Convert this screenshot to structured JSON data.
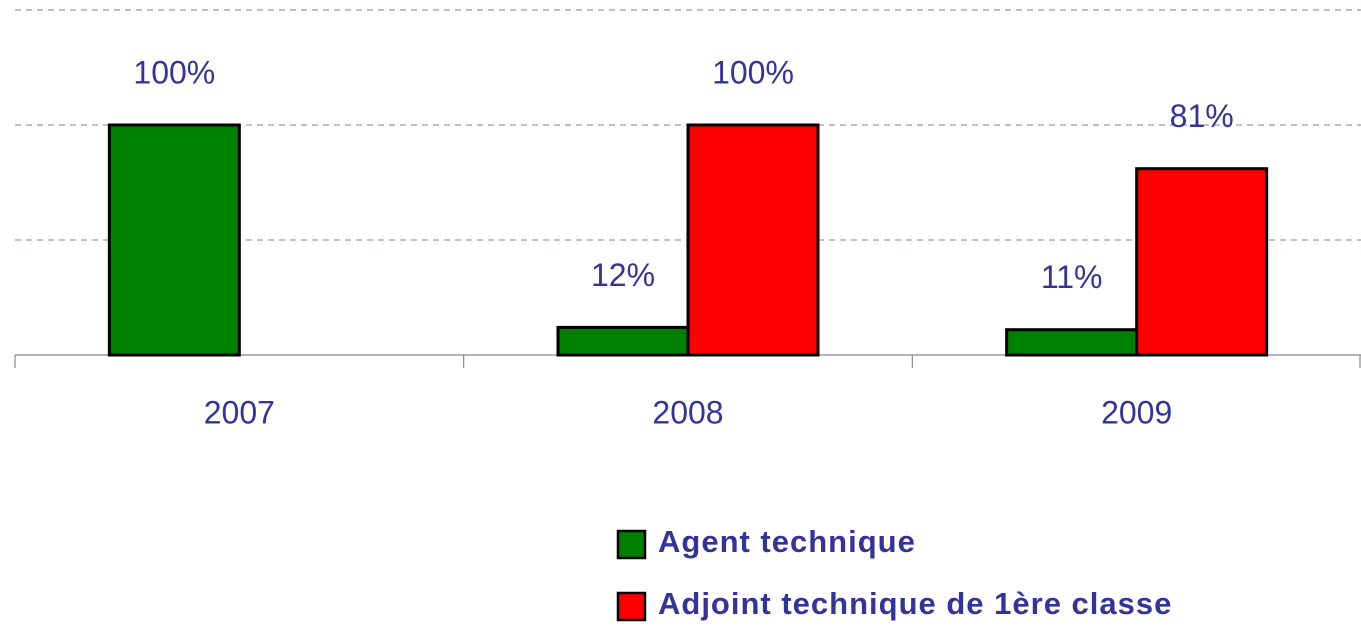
{
  "chart_data": {
    "type": "bar",
    "categories": [
      "2007",
      "2008",
      "2009"
    ],
    "series": [
      {
        "name": "Agent technique",
        "color": "#008000",
        "values": [
          100,
          12,
          11
        ],
        "value_labels": [
          "100%",
          "12%",
          "11%"
        ]
      },
      {
        "name": "Adjoint technique de 1ère classe",
        "color": "#ff0000",
        "values": [
          null,
          100,
          81
        ],
        "value_labels": [
          null,
          "100%",
          "81%"
        ]
      }
    ],
    "ylim": [
      0,
      150
    ],
    "yticks": [
      0,
      50,
      100,
      150
    ],
    "grid": true
  }
}
